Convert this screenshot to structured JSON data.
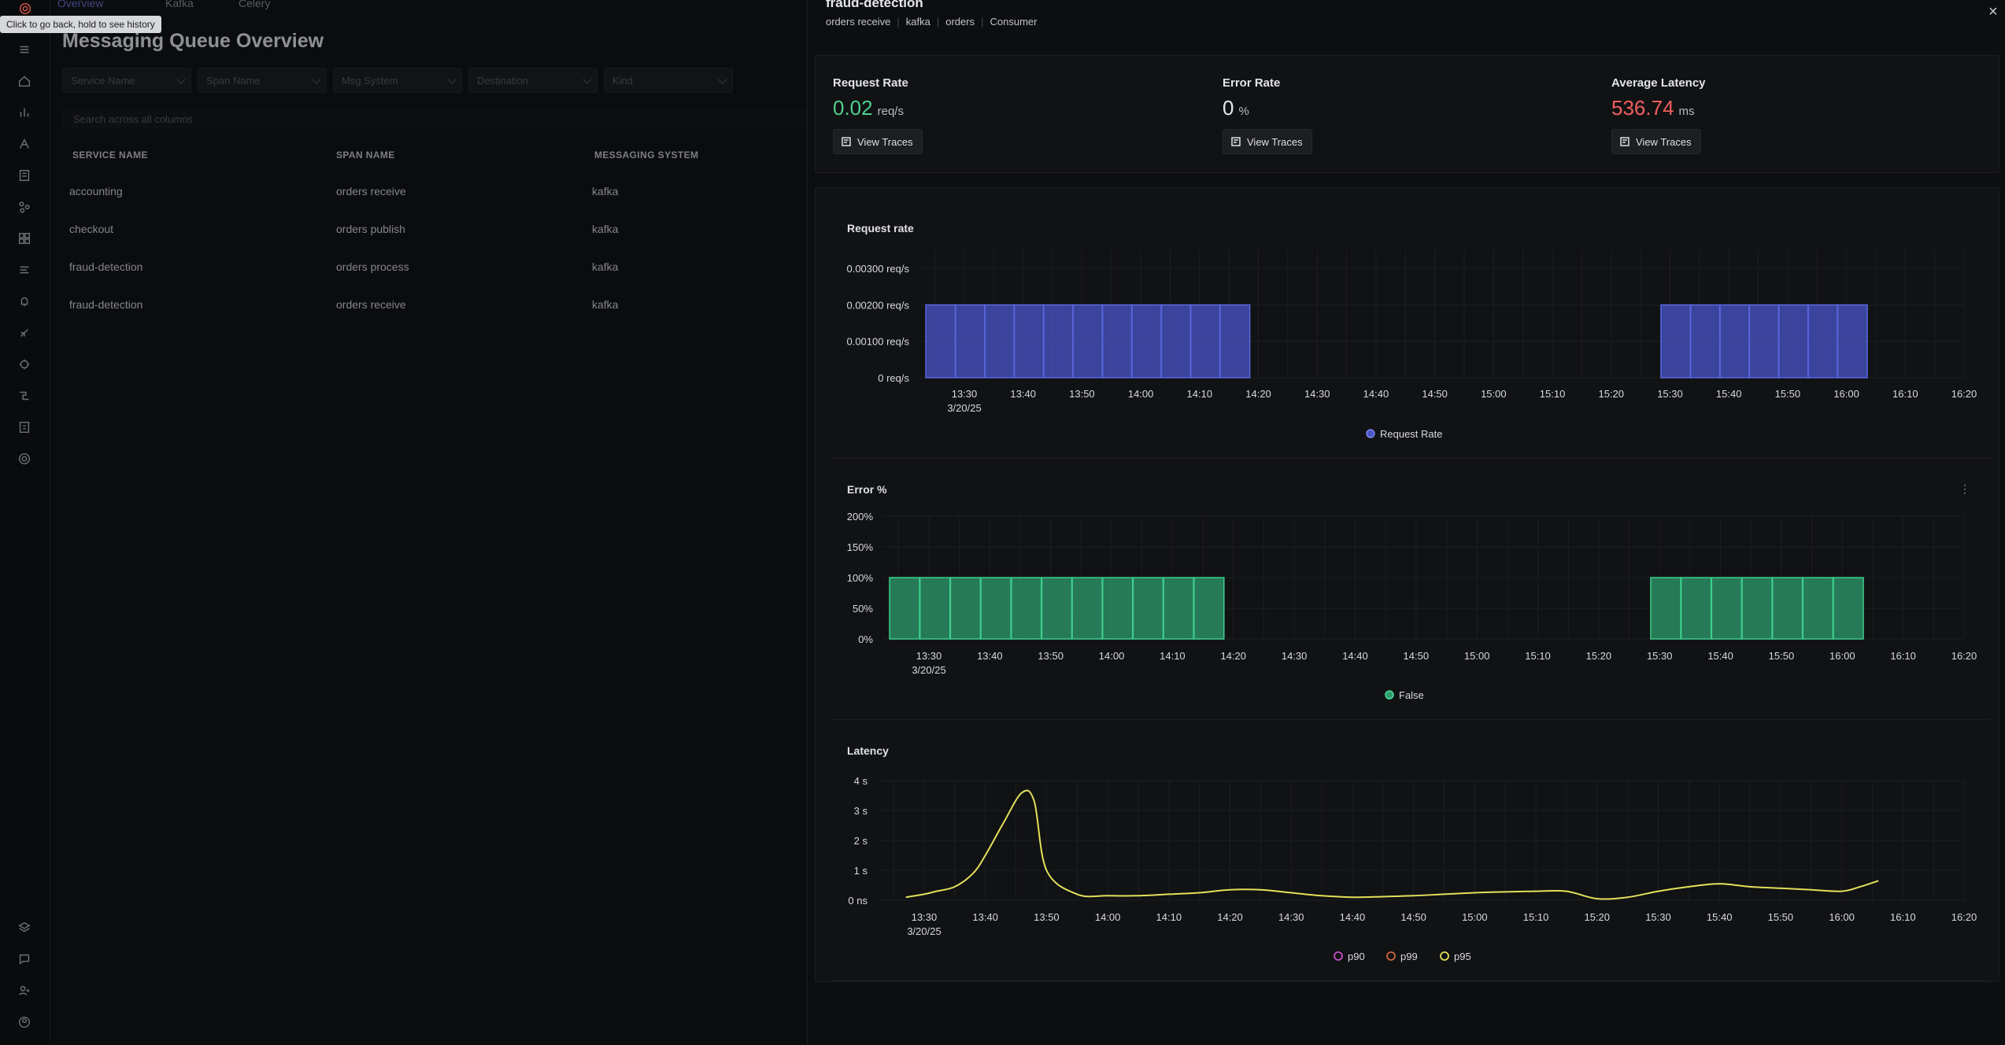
{
  "tooltip": "Click to go back, hold to see history",
  "background": {
    "tabs": [
      "Overview",
      "Kafka",
      "Celery"
    ],
    "title": "Messaging Queue Overview",
    "filters": [
      "Service Name",
      "Span Name",
      "Msg System",
      "Destination",
      "Kind"
    ],
    "search_placeholder": "Search across all columns",
    "columns": [
      "SERVICE NAME",
      "SPAN NAME",
      "MESSAGING SYSTEM"
    ],
    "rows": [
      {
        "service": "accounting",
        "span": "orders receive",
        "system": "kafka"
      },
      {
        "service": "checkout",
        "span": "orders publish",
        "system": "kafka"
      },
      {
        "service": "fraud-detection",
        "span": "orders process",
        "system": "kafka"
      },
      {
        "service": "fraud-detection",
        "span": "orders receive",
        "system": "kafka"
      }
    ]
  },
  "drawer": {
    "title": "fraud-detection",
    "breadcrumbs": [
      "orders receive",
      "kafka",
      "orders",
      "Consumer"
    ],
    "metrics": [
      {
        "label": "Request Rate",
        "value": "0.02",
        "unit": "req/s",
        "color": "#4ecf8a",
        "button": "View Traces"
      },
      {
        "label": "Error Rate",
        "value": "0",
        "unit": "%",
        "color": "#e6e7e9",
        "button": "View Traces"
      },
      {
        "label": "Average Latency",
        "value": "536.74",
        "unit": "ms",
        "color": "#f0605e",
        "button": "View Traces"
      }
    ]
  },
  "chart_data": [
    {
      "type": "bar",
      "title": "Request rate",
      "x_ticks": [
        "13:30",
        "13:40",
        "13:50",
        "14:00",
        "14:10",
        "14:20",
        "14:30",
        "14:40",
        "14:50",
        "15:00",
        "15:10",
        "15:20",
        "15:30",
        "15:40",
        "15:50",
        "16:00",
        "16:10",
        "16:20"
      ],
      "x_date": "3/20/25",
      "y_ticks": [
        "0 req/s",
        "0.00100 req/s",
        "0.00200 req/s",
        "0.00300 req/s"
      ],
      "ylim": [
        0,
        0.0035
      ],
      "series": [
        {
          "name": "Request Rate",
          "color": "#4a55c9",
          "x": [
            "13:25",
            "13:30",
            "13:35",
            "13:40",
            "13:45",
            "13:50",
            "13:55",
            "14:00",
            "14:05",
            "14:10",
            "14:15",
            "15:30",
            "15:35",
            "15:40",
            "15:45",
            "15:50",
            "15:55",
            "16:00"
          ],
          "values": [
            0.002,
            0.002,
            0.002,
            0.002,
            0.002,
            0.002,
            0.002,
            0.002,
            0.002,
            0.002,
            0.002,
            0.002,
            0.002,
            0.002,
            0.002,
            0.002,
            0.002,
            0.002
          ]
        }
      ],
      "legend": [
        "Request Rate"
      ]
    },
    {
      "type": "bar",
      "title": "Error %",
      "x_ticks": [
        "13:30",
        "13:40",
        "13:50",
        "14:00",
        "14:10",
        "14:20",
        "14:30",
        "14:40",
        "14:50",
        "15:00",
        "15:10",
        "15:20",
        "15:30",
        "15:40",
        "15:50",
        "16:00",
        "16:10",
        "16:20"
      ],
      "x_date": "3/20/25",
      "y_ticks": [
        "0%",
        "50%",
        "100%",
        "150%",
        "200%"
      ],
      "ylim": [
        0,
        200
      ],
      "series": [
        {
          "name": "False",
          "color": "#2e9e6d",
          "x": [
            "13:25",
            "13:30",
            "13:35",
            "13:40",
            "13:45",
            "13:50",
            "13:55",
            "14:00",
            "14:05",
            "14:10",
            "14:15",
            "15:30",
            "15:35",
            "15:40",
            "15:45",
            "15:50",
            "15:55",
            "16:00"
          ],
          "values": [
            100,
            100,
            100,
            100,
            100,
            100,
            100,
            100,
            100,
            100,
            100,
            100,
            100,
            100,
            100,
            100,
            100,
            100
          ]
        }
      ],
      "legend": [
        "False"
      ]
    },
    {
      "type": "line",
      "title": "Latency",
      "x_ticks": [
        "13:30",
        "13:40",
        "13:50",
        "14:00",
        "14:10",
        "14:20",
        "14:30",
        "14:40",
        "14:50",
        "15:00",
        "15:10",
        "15:20",
        "15:30",
        "15:40",
        "15:50",
        "16:00",
        "16:10",
        "16:20"
      ],
      "x_date": "3/20/25",
      "y_ticks": [
        "0 ns",
        "1 s",
        "2 s",
        "3 s",
        "4 s"
      ],
      "ylim": [
        0,
        4
      ],
      "series": [
        {
          "name": "p90",
          "color": "#c94fc9",
          "values": []
        },
        {
          "name": "p99",
          "color": "#d0653a",
          "values": []
        },
        {
          "name": "p95",
          "color": "#e3e05b",
          "x": [
            "13:27",
            "13:30",
            "13:32",
            "13:35",
            "13:38",
            "13:40",
            "13:43",
            "13:46",
            "13:48",
            "13:50",
            "13:55",
            "14:00",
            "14:05",
            "14:10",
            "14:15",
            "14:20",
            "14:25",
            "14:30",
            "14:35",
            "14:40",
            "14:45",
            "14:50",
            "14:55",
            "15:00",
            "15:05",
            "15:10",
            "15:15",
            "15:20",
            "15:25",
            "15:30",
            "15:35",
            "15:40",
            "15:45",
            "15:50",
            "15:55",
            "16:00",
            "16:03",
            "16:06"
          ],
          "values": [
            0.1,
            0.2,
            0.3,
            0.45,
            0.9,
            1.5,
            2.6,
            3.6,
            3.3,
            1.0,
            0.2,
            0.15,
            0.15,
            0.2,
            0.25,
            0.35,
            0.35,
            0.25,
            0.15,
            0.1,
            0.12,
            0.15,
            0.2,
            0.25,
            0.28,
            0.3,
            0.3,
            0.05,
            0.1,
            0.3,
            0.45,
            0.55,
            0.45,
            0.4,
            0.35,
            0.3,
            0.45,
            0.65
          ]
        }
      ],
      "legend": [
        "p90",
        "p99",
        "p95"
      ]
    }
  ]
}
